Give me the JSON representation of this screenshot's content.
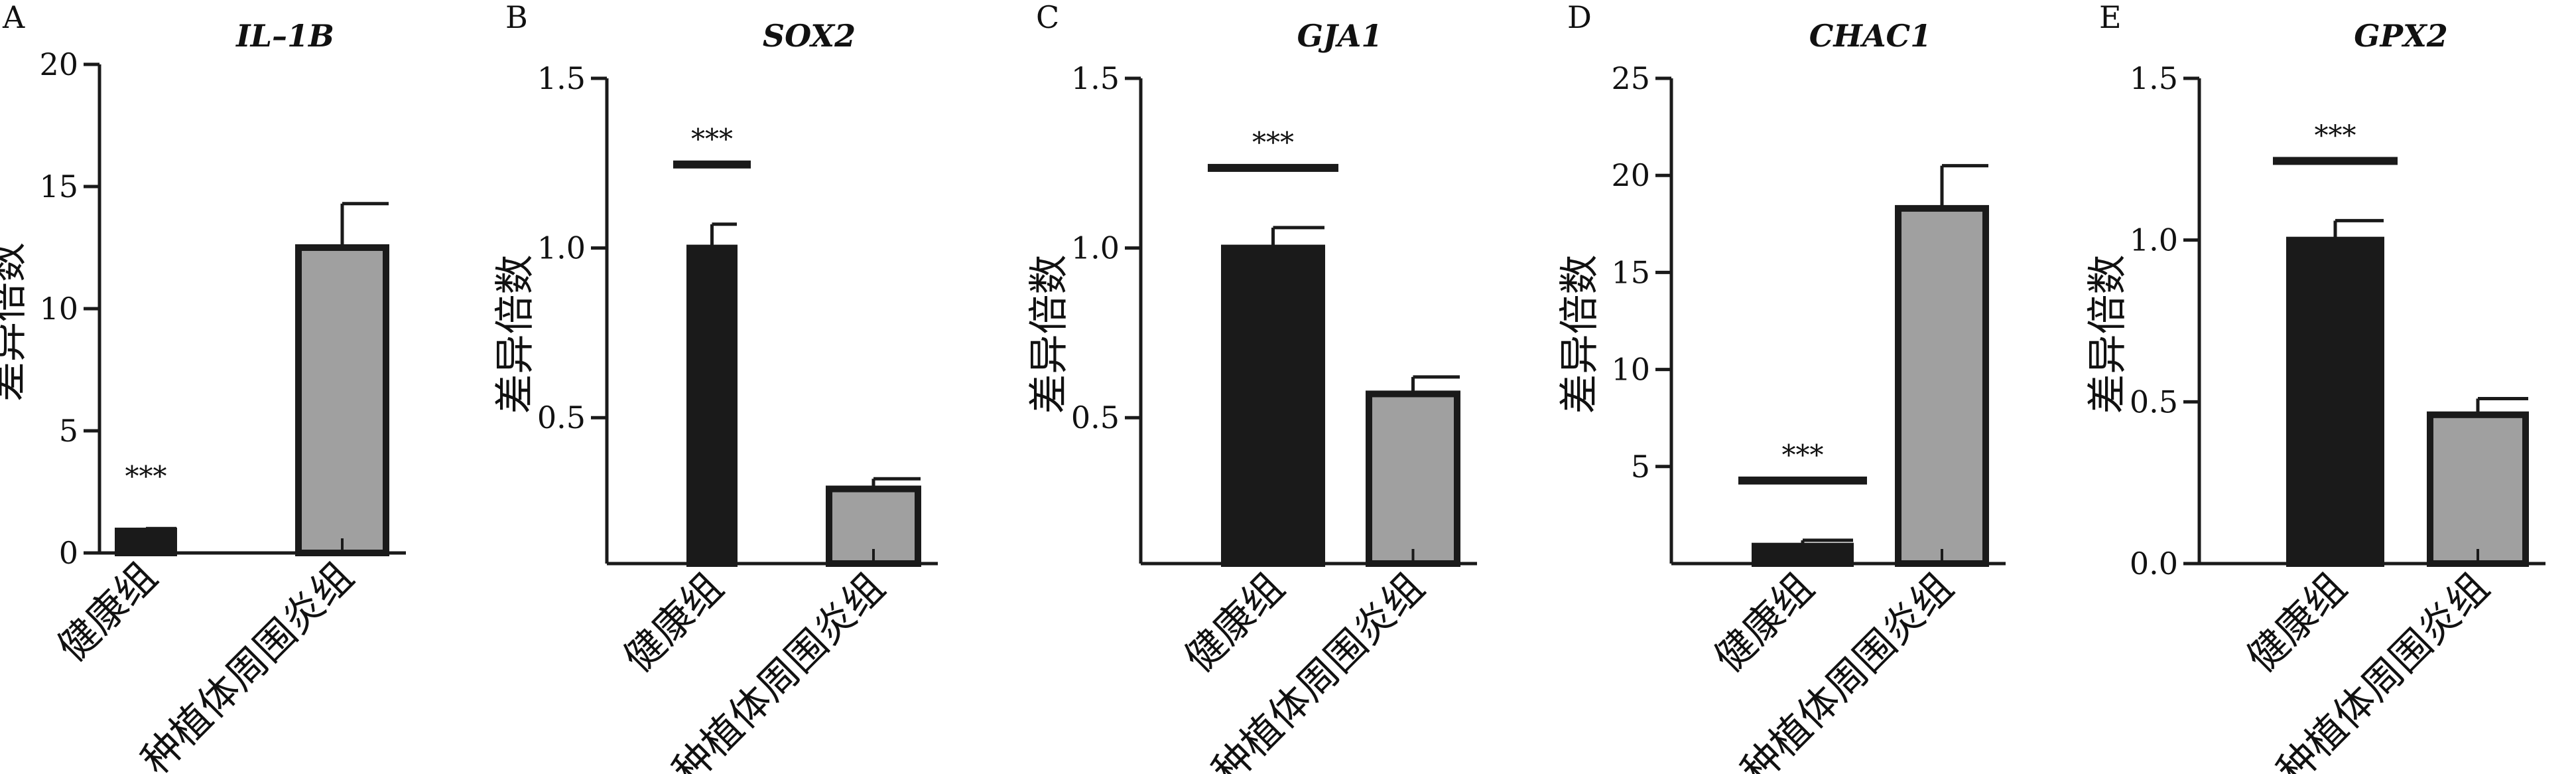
{
  "colors": {
    "group1_fill": "#1a1a1a",
    "group2_fill": "#a0a0a0",
    "outline": "#1a1a1a",
    "axis": "#1a1a1a"
  },
  "chart_data": [
    {
      "type": "bar",
      "panel": "A",
      "title": "IL–1B",
      "ylabel": "差异倍数",
      "categories": [
        "健康组",
        "种植体周围炎组"
      ],
      "values": [
        0.9,
        12.5
      ],
      "errors": [
        0.1,
        1.8
      ],
      "ylim": [
        0,
        20
      ],
      "yticks": [
        0,
        5,
        10,
        15,
        20
      ],
      "ytick_labels": [
        "0",
        "5",
        "10",
        "15",
        "20"
      ],
      "significance": {
        "bar": 0,
        "label": "***"
      },
      "grid": false,
      "legend": "none"
    },
    {
      "type": "bar",
      "panel": "B",
      "title": "SOX2",
      "ylabel": "差异倍数",
      "categories": [
        "健康组",
        "种植体周围炎组"
      ],
      "values": [
        1.0,
        0.29
      ],
      "errors": [
        0.07,
        0.03
      ],
      "ylim": [
        0.07,
        1.5
      ],
      "yticks": [
        0.5,
        1.0,
        1.5
      ],
      "ytick_labels": [
        "0.5",
        "1.0",
        "1.5"
      ],
      "significance": {
        "bar": 0,
        "label": "***"
      },
      "grid": false,
      "legend": "none"
    },
    {
      "type": "bar",
      "panel": "C",
      "title": "GJA1",
      "ylabel": "差异倍数",
      "categories": [
        "健康组",
        "种植体周围炎组"
      ],
      "values": [
        1.0,
        0.57
      ],
      "errors": [
        0.06,
        0.05
      ],
      "ylim": [
        0.07,
        1.5
      ],
      "yticks": [
        0.5,
        1.0,
        1.5
      ],
      "ytick_labels": [
        "0.5",
        "1.0",
        "1.5"
      ],
      "significance": {
        "bar": 0,
        "label": "***"
      },
      "grid": false,
      "legend": "none"
    },
    {
      "type": "bar",
      "panel": "D",
      "title": "CHAC1",
      "ylabel": "差异倍数",
      "categories": [
        "健康组",
        "种植体周围炎组"
      ],
      "values": [
        0.9,
        18.3
      ],
      "errors": [
        0.3,
        2.2
      ],
      "ylim": [
        0,
        25
      ],
      "yticks": [
        5,
        10,
        15,
        20,
        25
      ],
      "ytick_labels": [
        "5",
        "10",
        "15",
        "20",
        "25"
      ],
      "significance": {
        "bar": 0,
        "label": "***"
      },
      "grid": false,
      "legend": "none"
    },
    {
      "type": "bar",
      "panel": "E",
      "title": "GPX2",
      "ylabel": "差异倍数",
      "categories": [
        "健康组",
        "种植体周围炎组"
      ],
      "values": [
        1.0,
        0.46
      ],
      "errors": [
        0.06,
        0.05
      ],
      "ylim": [
        0,
        1.5
      ],
      "yticks": [
        0.0,
        0.5,
        1.0,
        1.5
      ],
      "ytick_labels": [
        "0.0",
        "0.5",
        "1.0",
        "1.5"
      ],
      "significance": {
        "bar": 0,
        "label": "***"
      },
      "grid": false,
      "legend": "none"
    }
  ]
}
